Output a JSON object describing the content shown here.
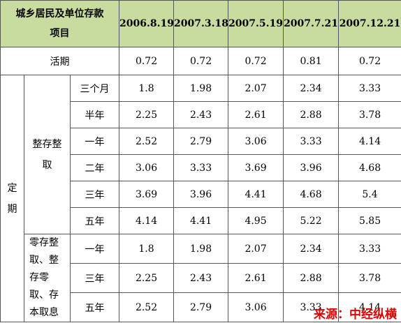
{
  "header": {
    "title": "城乡居民及单位存款项目",
    "columns": [
      "2006.8.19",
      "2007.3.18",
      "2007.5.19",
      "2007.7.21",
      "2007.12.21"
    ]
  },
  "table": {
    "current": {
      "label": "活期",
      "values": [
        "0.72",
        "0.72",
        "0.72",
        "0.81",
        "0.72"
      ]
    },
    "fixed": {
      "label": "定期",
      "groups": [
        {
          "label": "整存整取",
          "rows": [
            {
              "term": "三个月",
              "values": [
                "1.8",
                "1.98",
                "2.07",
                "2.34",
                "3.33"
              ]
            },
            {
              "term": "半年",
              "values": [
                "2.25",
                "2.43",
                "2.61",
                "2.88",
                "3.78"
              ]
            },
            {
              "term": "一年",
              "values": [
                "2.52",
                "2.79",
                "3.06",
                "3.33",
                "4.14"
              ]
            },
            {
              "term": "二年",
              "values": [
                "3.06",
                "3.33",
                "3.69",
                "3.96",
                "4.68"
              ]
            },
            {
              "term": "三年",
              "values": [
                "3.69",
                "3.96",
                "4.41",
                "4.68",
                "5.4"
              ]
            },
            {
              "term": "五年",
              "values": [
                "4.14",
                "4.41",
                "4.95",
                "5.22",
                "5.85"
              ]
            }
          ]
        },
        {
          "label": "零存整取、整存零取、存本取息",
          "rows": [
            {
              "term": "一年",
              "values": [
                "1.8",
                "1.98",
                "2.07",
                "2.34",
                "3.33"
              ]
            },
            {
              "term": "三年",
              "values": [
                "2.25",
                "2.43",
                "2.61",
                "2.88",
                "3.78"
              ]
            },
            {
              "term": "五年",
              "values": [
                "2.52",
                "2.79",
                "3.06",
                "3.33",
                "4.14"
              ]
            }
          ]
        }
      ]
    }
  },
  "source": "来源：中经纵横"
}
